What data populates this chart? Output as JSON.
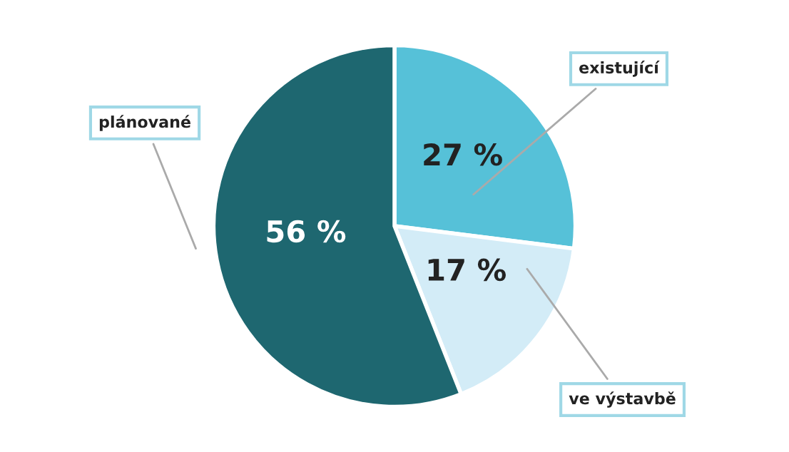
{
  "chart_data": {
    "type": "pie",
    "categories": [
      "existující",
      "ve výstavbě",
      "plánované"
    ],
    "values": [
      27,
      17,
      56
    ],
    "colors": [
      "#56c1d8",
      "#d3ecf7",
      "#1e6770"
    ],
    "value_labels": [
      "27 %",
      "17 %",
      "56 %"
    ]
  }
}
